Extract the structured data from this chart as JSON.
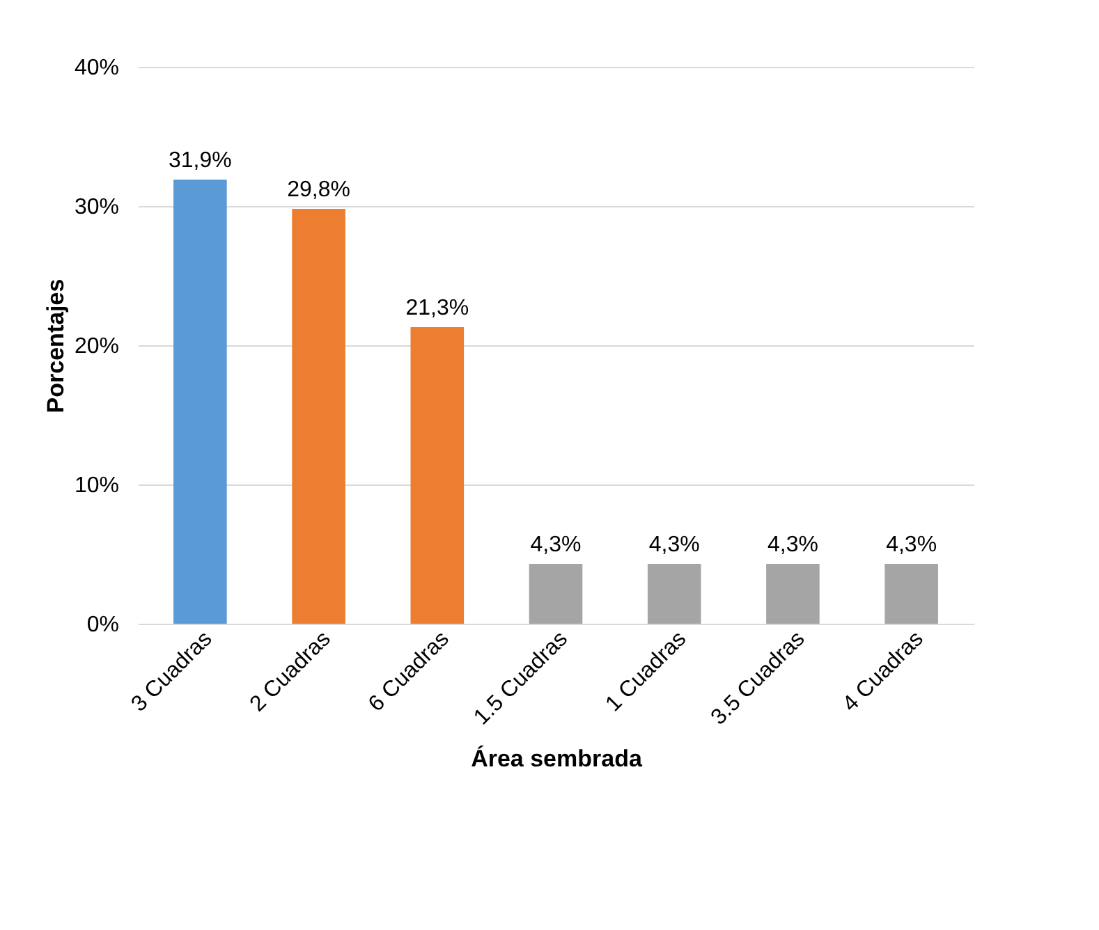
{
  "chart_data": {
    "type": "bar",
    "xlabel": "Área sembrada",
    "ylabel": "Porcentajes",
    "categories": [
      "3 Cuadras",
      "2 Cuadras",
      "6 Cuadras",
      "1.5 Cuadras",
      "1 Cuadras",
      "3.5 Cuadras",
      "4 Cuadras"
    ],
    "values": [
      31.9,
      29.8,
      21.3,
      4.3,
      4.3,
      4.3,
      4.3
    ],
    "colors": [
      "#5b9bd5",
      "#ed7d31",
      "#ed7d31",
      "#a5a5a5",
      "#a5a5a5",
      "#a5a5a5",
      "#a5a5a5"
    ],
    "value_labels": [
      "31,9%",
      "29,8%",
      "21,3%",
      "4,3%",
      "4,3%",
      "4,3%",
      "4,3%"
    ],
    "ylim": [
      0,
      40
    ],
    "yticks": [
      {
        "value": 0,
        "label": "0%"
      },
      {
        "value": 10,
        "label": "10%"
      },
      {
        "value": 20,
        "label": "20%"
      },
      {
        "value": 30,
        "label": "30%"
      },
      {
        "value": 40,
        "label": "40%"
      }
    ],
    "grid": "y"
  }
}
